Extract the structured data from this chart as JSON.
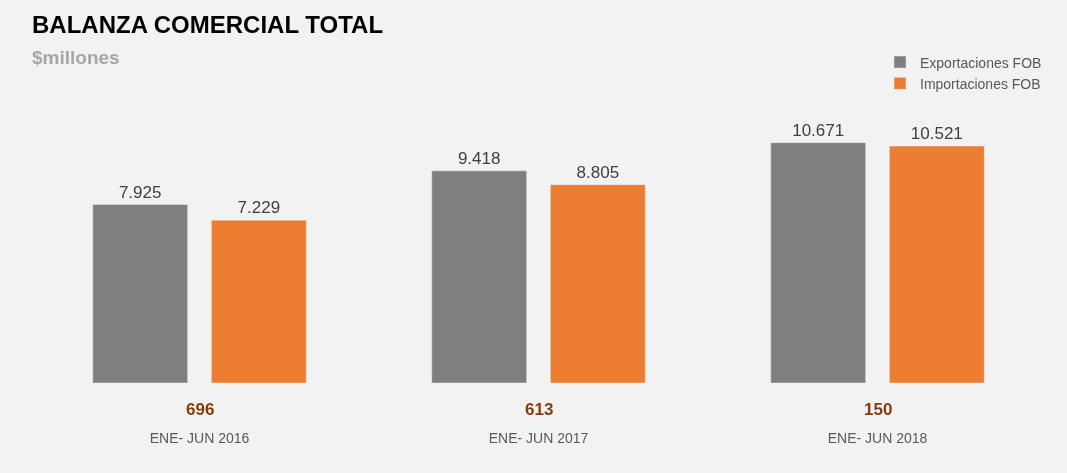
{
  "chart_data": {
    "type": "bar",
    "title": "BALANZA COMERCIAL TOTAL",
    "subtitle": "$millones",
    "categories": [
      "ENE- JUN 2016",
      "ENE- JUN 2017",
      "ENE- JUN 2018"
    ],
    "series": [
      {
        "name": "Exportaciones FOB",
        "color": "#7f7f7f",
        "values": [
          7925,
          9418,
          10671
        ],
        "value_labels": [
          "7.925",
          "9.418",
          "10.671"
        ]
      },
      {
        "name": "Importaciones FOB",
        "color": "#ed7d31",
        "values": [
          7229,
          8805,
          10521
        ],
        "value_labels": [
          "7.229",
          "8.805",
          "10.521"
        ]
      }
    ],
    "annotations": [
      "696",
      "613",
      "150"
    ],
    "legend": "top right",
    "grid": false
  }
}
